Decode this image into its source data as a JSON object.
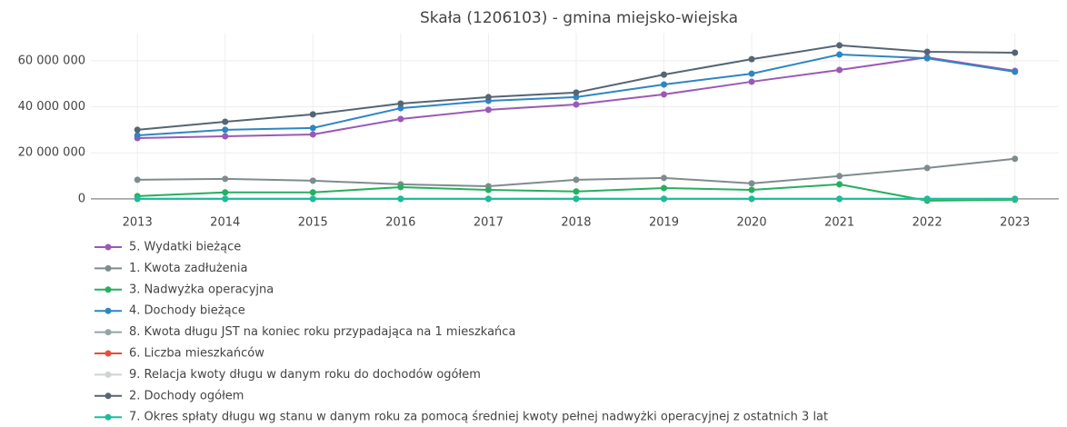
{
  "chart_data": {
    "type": "line",
    "title": "Skała (1206103) - gmina miejsko-wiejska",
    "x": [
      2013,
      2014,
      2015,
      2016,
      2017,
      2018,
      2019,
      2020,
      2021,
      2022,
      2023
    ],
    "xlim": [
      2012.47,
      2023.5
    ],
    "xticks": [
      2013,
      2014,
      2015,
      2016,
      2017,
      2018,
      2019,
      2020,
      2021,
      2022,
      2023
    ],
    "ylim": [
      -4000000,
      72000000
    ],
    "yticks": [
      0,
      {
        "value": 20000000,
        "label": "20 000 000"
      },
      {
        "value": 40000000,
        "label": "40 000 000"
      },
      {
        "value": 60000000,
        "label": "60 000 000"
      }
    ],
    "grid": true,
    "series": [
      {
        "name": "5. Wydatki bieżące",
        "color": "#9b59b6",
        "values": [
          26400000,
          27200000,
          28000000,
          34700000,
          38700000,
          41000000,
          45400000,
          50900000,
          56000000,
          61500000,
          55600000
        ]
      },
      {
        "name": "1. Kwota zadłużenia",
        "color": "#7f8c8d",
        "values": [
          8300000,
          8700000,
          7900000,
          6300000,
          5500000,
          8300000,
          9100000,
          6700000,
          9900000,
          13400000,
          17400000
        ]
      },
      {
        "name": "3. Nadwyżka operacyjna",
        "color": "#27ae60",
        "values": [
          1200000,
          2800000,
          2800000,
          5100000,
          3900000,
          3200000,
          4700000,
          3900000,
          6300000,
          -800000,
          -400000
        ]
      },
      {
        "name": "4. Dochody bieżące",
        "color": "#2e86c1",
        "values": [
          27600000,
          30000000,
          30800000,
          39400000,
          42600000,
          44200000,
          49700000,
          54400000,
          62700000,
          61100000,
          55200000
        ]
      },
      {
        "name": "8. Kwota długu JST na koniec roku przypadająca na 1 mieszkańca",
        "color": "#95a5a6",
        "values": [
          0,
          0,
          0,
          0,
          0,
          0,
          0,
          0,
          0,
          0,
          0
        ]
      },
      {
        "name": "6. Liczba mieszkańców",
        "color": "#e74c3c",
        "values": [
          0,
          0,
          0,
          0,
          0,
          0,
          0,
          0,
          0,
          0,
          0
        ]
      },
      {
        "name": "9. Relacja kwoty długu w danym roku do dochodów ogółem",
        "color": "#d0d3d4",
        "values": [
          0,
          0,
          0,
          0,
          0,
          0,
          0,
          0,
          0,
          0,
          0
        ]
      },
      {
        "name": "2. Dochody ogółem",
        "color": "#566573",
        "values": [
          30000000,
          33500000,
          36700000,
          41400000,
          44200000,
          46200000,
          54000000,
          60700000,
          66700000,
          63900000,
          63500000
        ]
      },
      {
        "name": "7. Okres spłaty długu wg stanu w danym roku za pomocą średniej kwoty pełnej nadwyżki operacyjnej z ostatnich 3 lat",
        "color": "#1abc9c",
        "values": [
          0,
          0,
          0,
          0,
          0,
          0,
          0,
          0,
          0,
          0,
          0
        ]
      }
    ]
  }
}
